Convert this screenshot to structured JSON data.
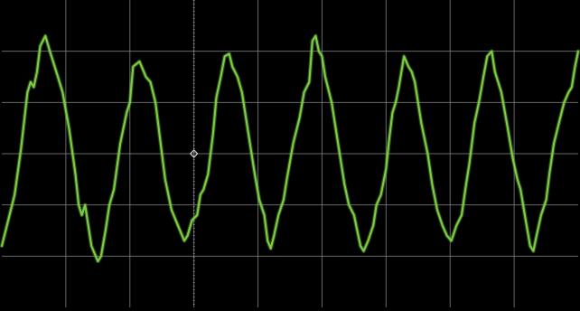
{
  "chart_data": {
    "type": "line",
    "title": "",
    "xlabel": "",
    "ylabel": "",
    "xlim": [
      0,
      9
    ],
    "ylim": [
      -3,
      3
    ],
    "grid": true,
    "grid_divisions": {
      "x": 9,
      "y": 6
    },
    "trigger_marker": {
      "x": 3,
      "y": 0
    },
    "colors": {
      "background": "#000000",
      "grid": "#8a8a8a",
      "center_axis": "#9a9a9a",
      "trace": "#7ccc45",
      "marker": "#d0d0d0"
    },
    "series": [
      {
        "name": "",
        "color": "#7ccc45",
        "points": [
          [
            0.0,
            -1.8
          ],
          [
            0.1,
            -1.3
          ],
          [
            0.2,
            -0.8
          ],
          [
            0.3,
            0.1
          ],
          [
            0.4,
            1.2
          ],
          [
            0.45,
            1.4
          ],
          [
            0.5,
            1.3
          ],
          [
            0.55,
            1.6
          ],
          [
            0.6,
            2.1
          ],
          [
            0.68,
            2.3
          ],
          [
            0.75,
            2.0
          ],
          [
            0.85,
            1.6
          ],
          [
            0.95,
            1.2
          ],
          [
            1.05,
            0.5
          ],
          [
            1.15,
            -0.4
          ],
          [
            1.2,
            -1.0
          ],
          [
            1.25,
            -1.2
          ],
          [
            1.3,
            -1.0
          ],
          [
            1.35,
            -1.4
          ],
          [
            1.4,
            -1.8
          ],
          [
            1.5,
            -2.1
          ],
          [
            1.55,
            -2.0
          ],
          [
            1.62,
            -1.5
          ],
          [
            1.68,
            -1.0
          ],
          [
            1.75,
            -0.7
          ],
          [
            1.85,
            0.2
          ],
          [
            1.95,
            0.8
          ],
          [
            2.0,
            1.0
          ],
          [
            2.05,
            1.7
          ],
          [
            2.15,
            1.8
          ],
          [
            2.25,
            1.5
          ],
          [
            2.32,
            1.4
          ],
          [
            2.4,
            1.0
          ],
          [
            2.48,
            0.2
          ],
          [
            2.55,
            -0.5
          ],
          [
            2.65,
            -1.1
          ],
          [
            2.75,
            -1.4
          ],
          [
            2.85,
            -1.7
          ],
          [
            2.9,
            -1.6
          ],
          [
            2.97,
            -1.3
          ],
          [
            3.05,
            -1.2
          ],
          [
            3.1,
            -0.8
          ],
          [
            3.15,
            -0.7
          ],
          [
            3.22,
            -0.4
          ],
          [
            3.3,
            0.4
          ],
          [
            3.35,
            1.1
          ],
          [
            3.42,
            1.5
          ],
          [
            3.48,
            1.9
          ],
          [
            3.55,
            1.95
          ],
          [
            3.6,
            1.7
          ],
          [
            3.68,
            1.5
          ],
          [
            3.75,
            1.2
          ],
          [
            3.85,
            0.4
          ],
          [
            3.95,
            -0.4
          ],
          [
            4.02,
            -0.9
          ],
          [
            4.1,
            -1.2
          ],
          [
            4.15,
            -1.7
          ],
          [
            4.2,
            -1.85
          ],
          [
            4.25,
            -1.6
          ],
          [
            4.32,
            -1.2
          ],
          [
            4.4,
            -0.9
          ],
          [
            4.45,
            -0.5
          ],
          [
            4.55,
            0.2
          ],
          [
            4.65,
            0.7
          ],
          [
            4.72,
            1.2
          ],
          [
            4.8,
            1.4
          ],
          [
            4.85,
            2.2
          ],
          [
            4.9,
            2.3
          ],
          [
            4.95,
            2.0
          ],
          [
            5.0,
            1.9
          ],
          [
            5.05,
            1.5
          ],
          [
            5.15,
            1.0
          ],
          [
            5.25,
            0.2
          ],
          [
            5.35,
            -0.6
          ],
          [
            5.42,
            -1.0
          ],
          [
            5.5,
            -1.2
          ],
          [
            5.55,
            -1.5
          ],
          [
            5.6,
            -1.8
          ],
          [
            5.65,
            -1.9
          ],
          [
            5.72,
            -1.7
          ],
          [
            5.8,
            -1.4
          ],
          [
            5.85,
            -1.0
          ],
          [
            5.92,
            -0.8
          ],
          [
            6.0,
            -0.3
          ],
          [
            6.05,
            0.3
          ],
          [
            6.1,
            0.8
          ],
          [
            6.15,
            1.0
          ],
          [
            6.2,
            1.3
          ],
          [
            6.28,
            1.9
          ],
          [
            6.35,
            1.7
          ],
          [
            6.4,
            1.6
          ],
          [
            6.45,
            1.4
          ],
          [
            6.55,
            0.6
          ],
          [
            6.65,
            0.0
          ],
          [
            6.72,
            -0.6
          ],
          [
            6.8,
            -1.1
          ],
          [
            6.88,
            -1.4
          ],
          [
            6.95,
            -1.6
          ],
          [
            7.02,
            -1.7
          ],
          [
            7.1,
            -1.4
          ],
          [
            7.18,
            -1.2
          ],
          [
            7.25,
            -0.6
          ],
          [
            7.3,
            -0.2
          ],
          [
            7.38,
            0.6
          ],
          [
            7.45,
            1.0
          ],
          [
            7.52,
            1.5
          ],
          [
            7.58,
            1.9
          ],
          [
            7.65,
            2.0
          ],
          [
            7.7,
            1.6
          ],
          [
            7.8,
            1.2
          ],
          [
            7.9,
            0.5
          ],
          [
            7.98,
            -0.1
          ],
          [
            8.05,
            -0.5
          ],
          [
            8.1,
            -0.7
          ],
          [
            8.18,
            -1.3
          ],
          [
            8.25,
            -1.8
          ],
          [
            8.3,
            -1.9
          ],
          [
            8.35,
            -1.6
          ],
          [
            8.42,
            -1.2
          ],
          [
            8.5,
            -0.9
          ],
          [
            8.55,
            -0.4
          ],
          [
            8.62,
            0.2
          ],
          [
            8.7,
            0.6
          ],
          [
            8.78,
            1.0
          ],
          [
            8.85,
            1.2
          ],
          [
            8.9,
            1.3
          ],
          [
            8.95,
            1.7
          ],
          [
            9.0,
            2.0
          ]
        ]
      }
    ]
  }
}
